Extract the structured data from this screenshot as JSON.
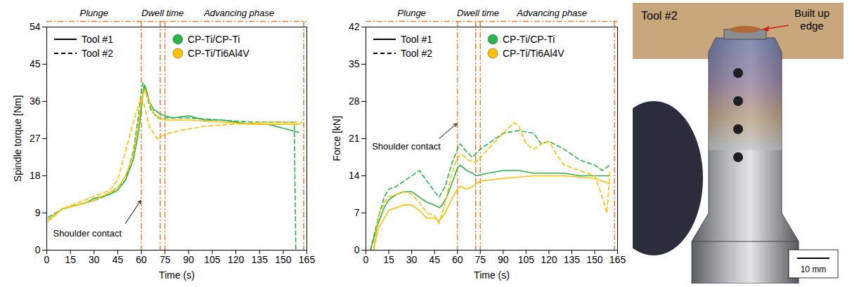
{
  "chart_data": [
    {
      "type": "line",
      "xlabel": "Time (s)",
      "ylabel": "Spindle torque [Nm]",
      "xlim": [
        0,
        165
      ],
      "xticks": [
        0,
        15,
        30,
        45,
        60,
        75,
        90,
        105,
        120,
        135,
        150,
        165
      ],
      "ylim": [
        0,
        54
      ],
      "yticks": [
        0,
        9,
        18,
        27,
        36,
        45,
        54
      ],
      "legend": "upper left",
      "phases": [
        {
          "label": "Plunge",
          "x": 30
        },
        {
          "label": "Dwell time",
          "x": 73.5
        },
        {
          "label": "Advancing phase",
          "x": 122
        }
      ],
      "phase_lines": [
        60,
        72,
        75,
        163
      ],
      "annotations": [
        {
          "text": "Shoulder contact",
          "x": 4,
          "y": 4,
          "arrow_from": [
            50,
            6.5
          ],
          "arrow_to": [
            59.5,
            12
          ]
        }
      ],
      "series": [
        {
          "tool": "Tool #1",
          "material": "CP-Ti/CP-Ti",
          "color": "#2bb24c",
          "line_style": "solid",
          "x": [
            1,
            5,
            10,
            15,
            20,
            25,
            30,
            35,
            40,
            45,
            50,
            55,
            58,
            60,
            61,
            62,
            63,
            65,
            68,
            72,
            75,
            80,
            90,
            100,
            110,
            120,
            130,
            140,
            150,
            155,
            160
          ],
          "values": [
            7.5,
            8.5,
            10,
            10.5,
            11,
            11.5,
            12.5,
            13,
            13.5,
            14.5,
            17,
            22,
            28,
            34,
            38,
            40,
            39,
            36,
            34,
            33,
            32.5,
            32,
            32.5,
            31.5,
            31.5,
            31,
            30.5,
            30.5,
            29.5,
            29,
            28.5
          ]
        },
        {
          "tool": "Tool #2",
          "material": "CP-Ti/CP-Ti",
          "color": "#2bb24c",
          "line_style": "dashed",
          "x": [
            1,
            10,
            20,
            30,
            40,
            50,
            55,
            58,
            60,
            61,
            63,
            66,
            70,
            75,
            90,
            110,
            130,
            150,
            157,
            158
          ],
          "values": [
            8,
            10,
            11,
            12,
            13.5,
            17,
            24,
            32,
            38,
            40.5,
            38,
            34,
            32,
            32,
            32,
            31.5,
            31,
            31,
            31,
            0
          ]
        },
        {
          "tool": "Tool #1",
          "material": "CP-Ti/Ti6Al4V",
          "color": "#ffc000",
          "line_style": "solid",
          "x": [
            1,
            10,
            20,
            30,
            40,
            45,
            50,
            55,
            58,
            60,
            62,
            64,
            68,
            72,
            75,
            90,
            110,
            130,
            150,
            160,
            162
          ],
          "values": [
            7.5,
            10,
            11,
            12,
            14,
            15,
            18,
            23,
            30,
            36,
            39,
            37,
            33,
            32,
            31.5,
            31.5,
            31,
            30.5,
            30.5,
            30.5,
            31
          ]
        },
        {
          "tool": "Tool #2",
          "material": "CP-Ti/Ti6Al4V",
          "color": "#ffc000",
          "line_style": "dashed",
          "x": [
            1,
            10,
            20,
            30,
            40,
            45,
            50,
            55,
            58,
            60,
            62,
            65,
            70,
            75,
            85,
            100,
            120,
            140,
            160
          ],
          "values": [
            7,
            10,
            11.5,
            13,
            14.5,
            17,
            24,
            31,
            35,
            37,
            35,
            30,
            27,
            28,
            29,
            30,
            30.5,
            31,
            31
          ]
        }
      ]
    },
    {
      "type": "line",
      "xlabel": "Time (s)",
      "ylabel": "Force [kN]",
      "xlim": [
        0,
        165
      ],
      "xticks": [
        0,
        15,
        30,
        45,
        60,
        75,
        90,
        105,
        120,
        135,
        150,
        165
      ],
      "ylim": [
        0,
        42
      ],
      "yticks": [
        0,
        7,
        14,
        21,
        28,
        35,
        42
      ],
      "legend": "upper left",
      "phases": [
        {
          "label": "Plunge",
          "x": 30
        },
        {
          "label": "Dwell time",
          "x": 73.5
        },
        {
          "label": "Advancing phase",
          "x": 122
        }
      ],
      "phase_lines": [
        60,
        72,
        75,
        163
      ],
      "annotations": [
        {
          "text": "Shoulder contact",
          "x": 4,
          "y": 19.5,
          "arrow_from": [
            48,
            21
          ],
          "arrow_to": [
            59.5,
            23.8
          ]
        }
      ],
      "series": [
        {
          "tool": "Tool #1",
          "material": "CP-Ti/CP-Ti",
          "color": "#2bb24c",
          "line_style": "solid",
          "x": [
            3,
            8,
            12,
            15,
            20,
            25,
            30,
            35,
            40,
            45,
            48,
            50,
            53,
            57,
            60,
            62,
            66,
            70,
            72,
            80,
            90,
            100,
            110,
            120,
            130,
            140,
            150,
            160
          ],
          "values": [
            0,
            5,
            8,
            9.5,
            10.5,
            11,
            11,
            10,
            9,
            8.5,
            8,
            8.5,
            10,
            13,
            15.5,
            16,
            15,
            14.5,
            14,
            14.5,
            15,
            15,
            14.5,
            14.5,
            14.5,
            14,
            14,
            14
          ]
        },
        {
          "tool": "Tool #2",
          "material": "CP-Ti/CP-Ti",
          "color": "#2bb24c",
          "line_style": "dashed",
          "x": [
            3,
            8,
            12,
            15,
            20,
            25,
            30,
            35,
            40,
            45,
            48,
            52,
            56,
            60,
            62,
            66,
            70,
            75,
            80,
            90,
            100,
            110,
            115,
            120,
            130,
            140,
            150,
            155,
            160
          ],
          "values": [
            0,
            6,
            10,
            11.5,
            12,
            13,
            14,
            15,
            13,
            11,
            10,
            12,
            16,
            19,
            20,
            18.5,
            17.5,
            19,
            20,
            22,
            22.5,
            22,
            20,
            20.5,
            19,
            17,
            16,
            15,
            16
          ]
        },
        {
          "tool": "Tool #1",
          "material": "CP-Ti/Ti6Al4V",
          "color": "#ffc000",
          "line_style": "solid",
          "x": [
            5,
            8,
            12,
            15,
            20,
            25,
            30,
            35,
            40,
            45,
            48,
            52,
            56,
            60,
            62,
            66,
            70,
            75,
            90,
            110,
            130,
            150,
            160
          ],
          "values": [
            0,
            4,
            6,
            7.5,
            8,
            8.5,
            8.5,
            7.5,
            6,
            6,
            5.5,
            7,
            9.5,
            11.5,
            12,
            11.5,
            12,
            13,
            13.5,
            14,
            14,
            13.5,
            12.5
          ]
        },
        {
          "tool": "Tool #2",
          "material": "CP-Ti/Ti6Al4V",
          "color": "#ffc000",
          "line_style": "dashed",
          "x": [
            5,
            8,
            12,
            15,
            20,
            25,
            30,
            35,
            40,
            45,
            48,
            52,
            56,
            60,
            63,
            67,
            72,
            80,
            90,
            97,
            100,
            105,
            110,
            115,
            120,
            125,
            130,
            140,
            150,
            155,
            158,
            160
          ],
          "values": [
            0,
            6,
            9,
            10,
            10.5,
            11,
            10.5,
            9,
            7,
            6.5,
            5,
            9,
            14,
            17.5,
            18,
            17,
            16.5,
            19,
            22,
            24,
            23.5,
            20,
            19,
            20,
            20.5,
            18,
            16,
            15,
            14,
            10,
            7,
            15
          ]
        }
      ]
    }
  ],
  "photo": {
    "label": "Tool #2",
    "annotation": "Built up edge",
    "scale_bar": "10 mm"
  }
}
